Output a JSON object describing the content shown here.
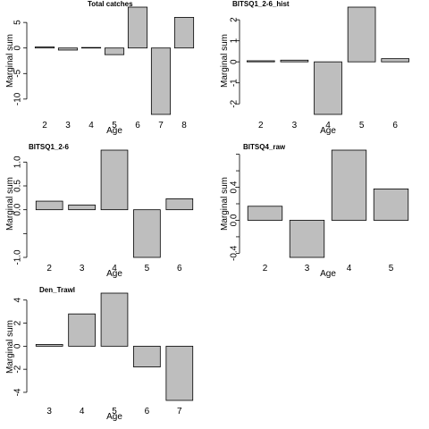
{
  "chart_data": [
    {
      "type": "bar",
      "title": "Total catches",
      "xlabel": "Age",
      "ylabel": "Marginal sum",
      "categories": [
        "2",
        "3",
        "4",
        "5",
        "6",
        "7",
        "8"
      ],
      "values": [
        0.2,
        -0.4,
        0.1,
        -1.3,
        8.0,
        -13.0,
        6.0
      ],
      "ylim": [
        -13,
        8
      ],
      "yticks": [
        -10,
        -5,
        0,
        5
      ],
      "ytick_labels": [
        "-10",
        "-5",
        "0",
        "5"
      ]
    },
    {
      "type": "bar",
      "title": "BITSQ1_2-6_hist",
      "xlabel": "Age",
      "ylabel": "Marginal sum",
      "categories": [
        "2",
        "3",
        "4",
        "5",
        "6"
      ],
      "values": [
        0.05,
        0.08,
        -2.5,
        2.6,
        0.15
      ],
      "ylim": [
        -2.5,
        2.6
      ],
      "yticks": [
        -2,
        -1,
        0,
        1,
        2
      ],
      "ytick_labels": [
        "-2",
        "-1",
        "0",
        "1",
        "2"
      ]
    },
    {
      "type": "bar",
      "title": "BITSQ1_2-6",
      "xlabel": "Age",
      "ylabel": "Marginal sum",
      "categories": [
        "2",
        "3",
        "4",
        "5",
        "6"
      ],
      "values": [
        0.18,
        0.1,
        1.25,
        -1.0,
        0.23
      ],
      "ylim": [
        -1.0,
        1.25
      ],
      "yticks": [
        -1.0,
        -0.5,
        0.0,
        0.5,
        1.0
      ],
      "ytick_labels": [
        "-1.0",
        "",
        "0.0",
        "0.5",
        "1.0"
      ]
    },
    {
      "type": "bar",
      "title": "BITSQ4_raw",
      "xlabel": "Age",
      "ylabel": "Marginal sum",
      "categories": [
        "2",
        "3",
        "4",
        "5"
      ],
      "values": [
        0.17,
        -0.45,
        0.85,
        0.38
      ],
      "ylim": [
        -0.45,
        0.85
      ],
      "yticks": [
        -0.4,
        -0.2,
        0.0,
        0.2,
        0.4,
        0.6,
        0.8
      ],
      "ytick_labels": [
        "-0.4",
        "",
        "0.0",
        "",
        "0.4",
        "",
        ""
      ]
    },
    {
      "type": "bar",
      "title": "Den_Trawl",
      "xlabel": "Age",
      "ylabel": "Marginal sum",
      "categories": [
        "3",
        "4",
        "5",
        "6",
        "7"
      ],
      "values": [
        0.15,
        2.8,
        4.6,
        -1.8,
        -4.7
      ],
      "ylim": [
        -4.7,
        4.6
      ],
      "yticks": [
        -4,
        -2,
        0,
        2,
        4
      ],
      "ytick_labels": [
        "-4",
        "-2",
        "0",
        "2",
        "4"
      ]
    }
  ]
}
